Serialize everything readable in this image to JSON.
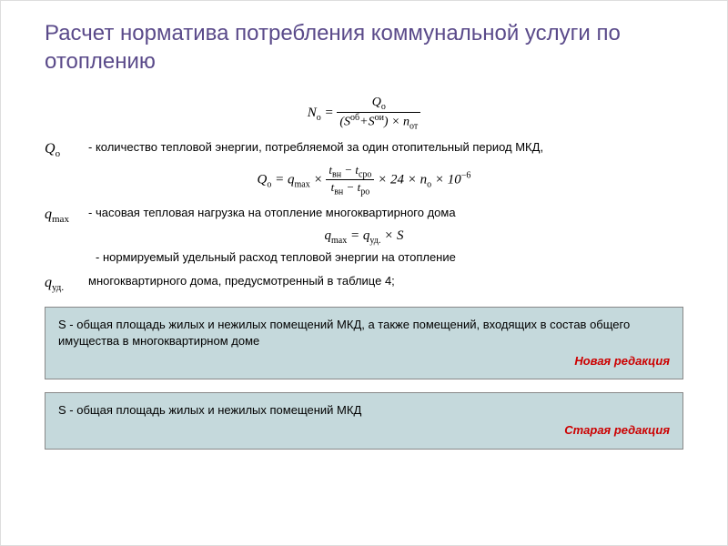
{
  "title": "Расчет норматива потребления коммунальной услуги по отоплению",
  "formula1": {
    "lhs": "N",
    "lhs_sub": "о",
    "num": "Q",
    "num_sub": "о",
    "den_s1": "S",
    "den_s1_sup": "об",
    "den_s2": "S",
    "den_s2_sup": "ои",
    "den_tail_n": "n",
    "den_tail_sub": "от"
  },
  "def1": {
    "sym": "Q",
    "sym_sub": "о",
    "text": "- количество тепловой энергии, потребляемой за один отопительный период МКД,"
  },
  "formula2": {
    "lhs": "Q",
    "lhs_sub": "о",
    "q": "q",
    "q_sub": "max",
    "frac_num_t1": "t",
    "frac_num_t1_sub": "вн",
    "frac_num_t2": "t",
    "frac_num_t2_sub": "сро",
    "frac_den_t1": "t",
    "frac_den_t1_sub": "вн",
    "frac_den_t2": "t",
    "frac_den_t2_sub": "ро",
    "c24": "24",
    "n": "n",
    "n_sub": "о",
    "c10": "10",
    "exp": "−6"
  },
  "def2": {
    "sym": "q",
    "sym_sub": "max",
    "text": "- часовая тепловая нагрузка на отопление многоквартирного дома"
  },
  "formula3": {
    "lhs": "q",
    "lhs_sub": "max",
    "rhs_q": "q",
    "rhs_q_sub": "уд.",
    "S": "S"
  },
  "def3": {
    "pre": "- нормируемый удельный расход тепловой энергии на отопление",
    "sym": "q",
    "sym_sub": "уд.",
    "text": "многоквартирного дома, предусмотренный в таблице 4;"
  },
  "box1": {
    "text": "S - общая площадь жилых и нежилых помещений МКД, а также помещений, входящих в состав общего имущества в многоквартирном доме",
    "label": "Новая редакция"
  },
  "box2": {
    "text": "S - общая площадь жилых и нежилых помещений МКД",
    "label": "Старая редакция"
  },
  "colors": {
    "title": "#5a4a8a",
    "box_bg": "#c5d9dc",
    "label": "#cc0000"
  }
}
